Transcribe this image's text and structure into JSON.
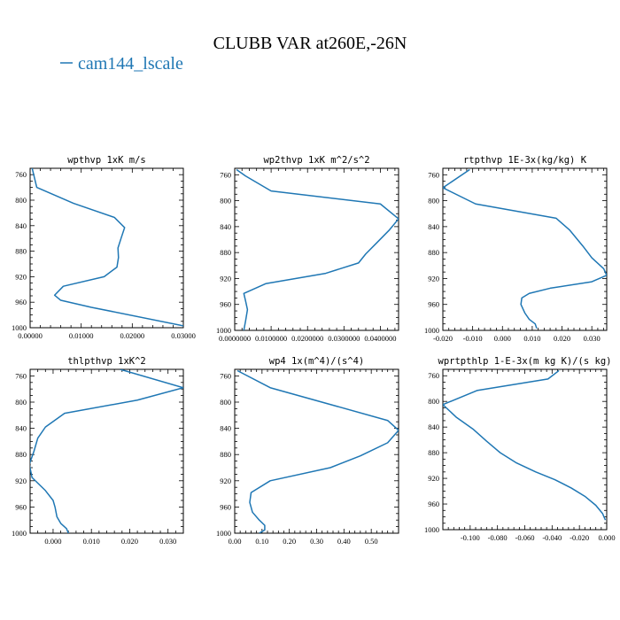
{
  "figure": {
    "title": "CLUBB VAR at260E,-26N",
    "legend": {
      "label": "cam144_lscale",
      "color": "#1f77b4"
    }
  },
  "chart_data": [
    {
      "type": "line",
      "title": "wpthvp   1xK m/s",
      "xlim": [
        0,
        0.03
      ],
      "ylim": [
        1000,
        750
      ],
      "xticks": [
        "0.00000",
        "0.01000",
        "0.02000",
        "0.03000"
      ],
      "xtick_values": [
        0,
        0.01,
        0.02,
        0.03
      ],
      "yticks": [
        "760",
        "800",
        "840",
        "880",
        "920",
        "960",
        "1000"
      ],
      "ytick_values": [
        760,
        800,
        840,
        880,
        920,
        960,
        1000
      ],
      "series": [
        {
          "color": "#1f77b4",
          "x": [
            0.0004,
            0.0013,
            0.0085,
            0.0165,
            0.0185,
            0.0178,
            0.0172,
            0.0173,
            0.017,
            0.0145,
            0.0065,
            0.0048,
            0.006,
            0.012,
            0.03
          ],
          "y": [
            750,
            780,
            805,
            827,
            843,
            860,
            875,
            890,
            905,
            920,
            935,
            949,
            957,
            968,
            997
          ]
        }
      ]
    },
    {
      "type": "line",
      "title": "wp2thvp   1xK m^2/s^2",
      "xlim": [
        0,
        0.045
      ],
      "ylim": [
        1000,
        750
      ],
      "xticks": [
        "0.0000000",
        "0.0100000",
        "0.0200000",
        "0.0300000",
        "0.0400000"
      ],
      "xtick_values": [
        0,
        0.01,
        0.02,
        0.03,
        0.04
      ],
      "yticks": [
        "760",
        "800",
        "840",
        "880",
        "920",
        "960",
        "1000"
      ],
      "ytick_values": [
        760,
        800,
        840,
        880,
        920,
        960,
        1000
      ],
      "series": [
        {
          "color": "#1f77b4",
          "x": [
            0.0005,
            0.003,
            0.01,
            0.04,
            0.045,
            0.0425,
            0.039,
            0.036,
            0.034,
            0.025,
            0.0085,
            0.0025,
            0.003,
            0.0035,
            0.003,
            0.0025
          ],
          "y": [
            752,
            762,
            785,
            805,
            828,
            845,
            865,
            882,
            896,
            912,
            928,
            943,
            955,
            968,
            985,
            1000
          ]
        }
      ]
    },
    {
      "type": "line",
      "title": "rtpthvp   1E-3x(kg/kg) K",
      "xlim": [
        -0.02,
        0.035
      ],
      "ylim": [
        1000,
        750
      ],
      "xticks": [
        "-0.020",
        "-0.010",
        "0.000",
        "0.010",
        "0.020",
        "0.030"
      ],
      "xtick_values": [
        -0.02,
        -0.01,
        0,
        0.01,
        0.02,
        0.03
      ],
      "yticks": [
        "760",
        "800",
        "840",
        "880",
        "920",
        "960",
        "1000"
      ],
      "ytick_values": [
        760,
        800,
        840,
        880,
        920,
        960,
        1000
      ],
      "series": [
        {
          "color": "#1f77b4",
          "x": [
            -0.011,
            -0.02,
            -0.009,
            0.018,
            0.0225,
            0.027,
            0.03,
            0.034,
            0.035,
            0.03,
            0.016,
            0.009,
            0.0065,
            0.0062,
            0.0075,
            0.009,
            0.011,
            0.0115
          ],
          "y": [
            752,
            780,
            805,
            827,
            845,
            870,
            888,
            905,
            915,
            925,
            935,
            943,
            950,
            960,
            973,
            983,
            990,
            997
          ]
        }
      ]
    },
    {
      "type": "line",
      "title": "thlpthvp   1xK^2",
      "xlim": [
        -0.006,
        0.034
      ],
      "ylim": [
        1000,
        750
      ],
      "xticks": [
        "0.000",
        "0.010",
        "0.020",
        "0.030"
      ],
      "xtick_values": [
        0,
        0.01,
        0.02,
        0.03
      ],
      "yticks": [
        "760",
        "800",
        "840",
        "880",
        "920",
        "960",
        "1000"
      ],
      "ytick_values": [
        760,
        800,
        840,
        880,
        920,
        960,
        1000
      ],
      "series": [
        {
          "color": "#1f77b4",
          "x": [
            0.0175,
            0.034,
            0.022,
            0.003,
            -0.002,
            -0.004,
            -0.005,
            -0.0062,
            -0.0055,
            -0.002,
            0.0,
            0.0005,
            0.001,
            0.002,
            0.0035,
            0.004
          ],
          "y": [
            750,
            778,
            797,
            817,
            838,
            855,
            875,
            895,
            915,
            935,
            950,
            960,
            975,
            985,
            993,
            1000
          ]
        }
      ]
    },
    {
      "type": "line",
      "title": "wp4   1x(m^4)/(s^4)",
      "xlim": [
        0,
        0.6
      ],
      "ylim": [
        1000,
        750
      ],
      "xticks": [
        "0.00",
        "0.10",
        "0.20",
        "0.30",
        "0.40",
        "0.50"
      ],
      "xtick_values": [
        0,
        0.1,
        0.2,
        0.3,
        0.4,
        0.5
      ],
      "yticks": [
        "760",
        "800",
        "840",
        "880",
        "920",
        "960",
        "1000"
      ],
      "ytick_values": [
        760,
        800,
        840,
        880,
        920,
        960,
        1000
      ],
      "series": [
        {
          "color": "#1f77b4",
          "x": [
            0.01,
            0.13,
            0.56,
            0.6,
            0.56,
            0.46,
            0.35,
            0.13,
            0.06,
            0.055,
            0.065,
            0.09,
            0.11,
            0.11,
            0.09
          ],
          "y": [
            752,
            778,
            828,
            843,
            862,
            882,
            900,
            920,
            938,
            953,
            968,
            980,
            988,
            995,
            1000
          ]
        }
      ]
    },
    {
      "type": "line",
      "title": "wprtpthlp   1-E-3x(m kg K)/(s kg)",
      "xlim": [
        -0.12,
        0.0
      ],
      "ylim": [
        1000,
        750
      ],
      "xticks": [
        "-0.100",
        "-0.080",
        "-0.060",
        "-0.040",
        "-0.020",
        "0.000"
      ],
      "xtick_values": [
        -0.1,
        -0.08,
        -0.06,
        -0.04,
        -0.02,
        0
      ],
      "yticks": [
        "760",
        "800",
        "840",
        "880",
        "920",
        "960",
        "1000"
      ],
      "ytick_values": [
        760,
        800,
        840,
        880,
        920,
        960,
        1000
      ],
      "series": [
        {
          "color": "#1f77b4",
          "x": [
            -0.035,
            -0.043,
            -0.095,
            -0.12,
            -0.11,
            -0.098,
            -0.088,
            -0.078,
            -0.066,
            -0.052,
            -0.038,
            -0.026,
            -0.016,
            -0.008,
            -0.003,
            -0.001
          ],
          "y": [
            752,
            765,
            783,
            805,
            825,
            843,
            862,
            880,
            896,
            910,
            922,
            935,
            948,
            962,
            975,
            985
          ]
        }
      ]
    }
  ]
}
